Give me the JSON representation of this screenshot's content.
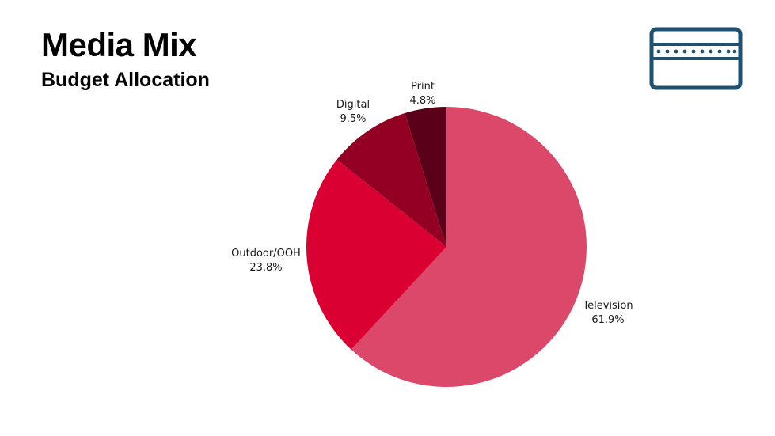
{
  "header": {
    "title": "Media Mix",
    "subtitle": "Budget Allocation"
  },
  "logo": {
    "icon": "card-with-dots-icon",
    "color": "#1f5070"
  },
  "chart_data": {
    "type": "pie",
    "title": "Media Mix",
    "subtitle": "Budget Allocation",
    "start_angle_deg": 0,
    "direction": "clockwise",
    "slices": [
      {
        "label": "Television",
        "value": 61.9,
        "display": "61.9%",
        "color": "#dc4869"
      },
      {
        "label": "Outdoor/OOH",
        "value": 23.8,
        "display": "23.8%",
        "color": "#db0032"
      },
      {
        "label": "Digital",
        "value": 9.5,
        "display": "9.5%",
        "color": "#930024"
      },
      {
        "label": "Print",
        "value": 4.8,
        "display": "4.8%",
        "color": "#5b0019"
      }
    ]
  }
}
